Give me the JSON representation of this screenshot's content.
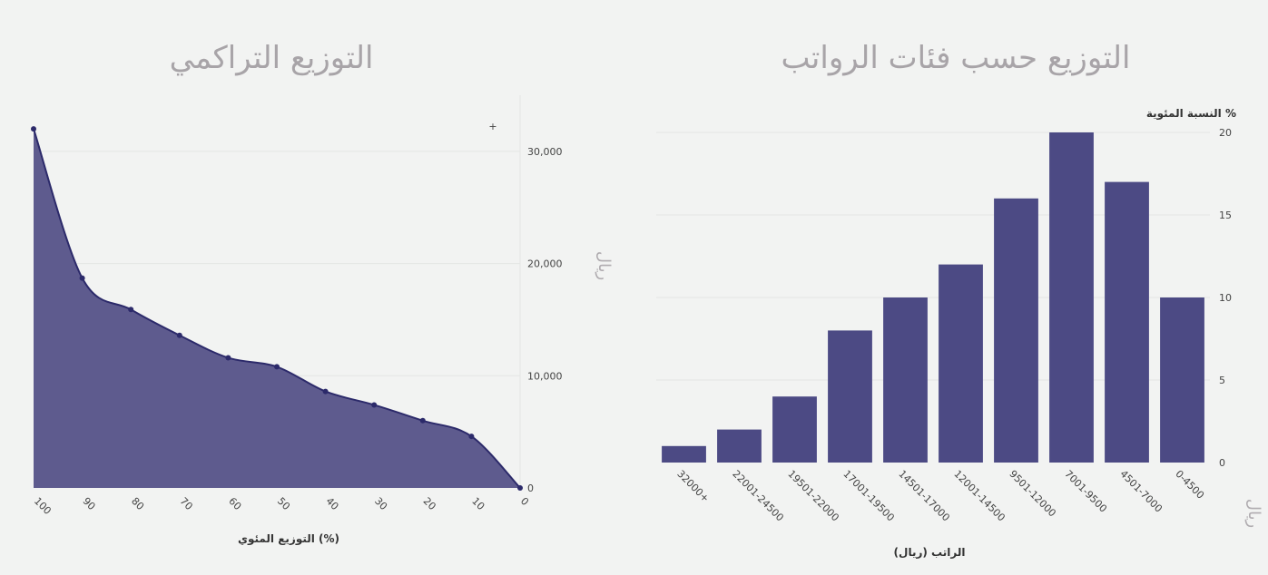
{
  "colors": {
    "bar": "#4c4a84",
    "area_fill": "#5e5b8e",
    "line": "#2c2a6a",
    "title": "#a8a4a8"
  },
  "chart_data": [
    {
      "type": "line",
      "title": "التوزيع التراكمي",
      "xlabel": "التوزيع المئوي (%)",
      "ylabel": "ريال",
      "x": [
        100,
        90,
        80,
        70,
        60,
        50,
        40,
        30,
        20,
        10,
        0
      ],
      "x_ticks": [
        "100",
        "90",
        "80",
        "70",
        "60",
        "50",
        "40",
        "30",
        "20",
        "10",
        "0"
      ],
      "values": [
        32000,
        18700,
        15900,
        13600,
        11600,
        10800,
        8600,
        7400,
        6000,
        4600,
        0
      ],
      "ylim": [
        0,
        35000
      ],
      "y_ticks": [
        "0",
        "10,000",
        "20,000",
        "30,000"
      ],
      "y_tick_values": [
        0,
        10000,
        20000,
        30000
      ],
      "x_reversed": true,
      "y_axis_side": "right",
      "filled": true,
      "plus_marker": "+"
    },
    {
      "type": "bar",
      "title": "التوزيع حسب فئات الرواتب",
      "xlabel": "الراتب (ريال)",
      "ylabel": "النسبة المئوية %",
      "unit_label": "ريال",
      "categories": [
        "0-4500",
        "4501-7000",
        "7001-9500",
        "9501-12000",
        "12001-14500",
        "14501-17000",
        "17001-19500",
        "19501-22000",
        "22001-24500",
        "32000+"
      ],
      "values": [
        10,
        17,
        20,
        16,
        12,
        10,
        8,
        4,
        2,
        1
      ],
      "ylim": [
        0,
        20
      ],
      "y_ticks": [
        "0",
        "5",
        "10",
        "15",
        "20"
      ],
      "y_tick_values": [
        0,
        5,
        10,
        15,
        20
      ],
      "y_axis_side": "right",
      "category_order": "right-to-left"
    }
  ]
}
